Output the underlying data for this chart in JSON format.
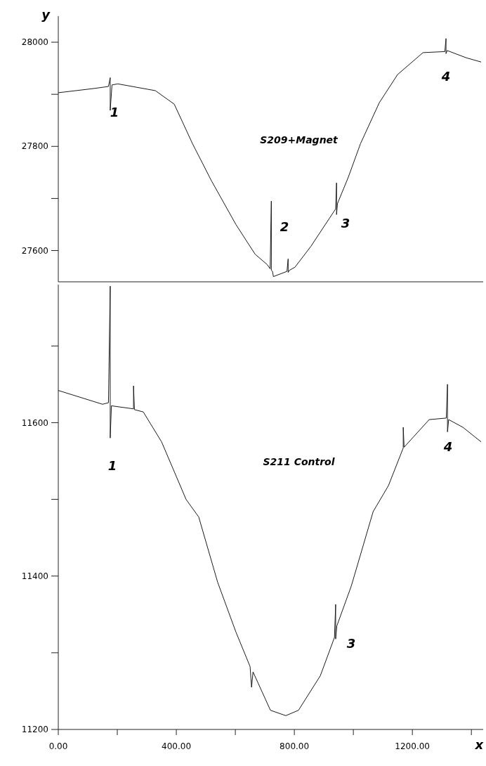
{
  "chart_data": [
    {
      "type": "line",
      "title": "S209+Magnet",
      "ylabel": "y",
      "tick_labels": "y",
      "xlim": [
        0,
        1440
      ],
      "ylim": [
        27540,
        28050
      ],
      "yticks": [
        27600,
        {
          "value": 27700,
          "label": null
        },
        27800,
        {
          "value": 27900,
          "label": null
        },
        28000
      ],
      "x": [
        0,
        119,
        170,
        176,
        176,
        182,
        202,
        329,
        393,
        455,
        519,
        602,
        667,
        708,
        718,
        722,
        722,
        726,
        729,
        775,
        779,
        779,
        783,
        802,
        856,
        919,
        940,
        943,
        943,
        946,
        983,
        1024,
        1088,
        1150,
        1236,
        1310,
        1314,
        1314,
        1318,
        1383,
        1433
      ],
      "series": [
        {
          "color": "#1a1a1a",
          "values": [
            27903,
            27911,
            27915,
            27932,
            27869,
            27918,
            27920,
            27907,
            27881,
            27805,
            27734,
            27650,
            27593,
            27573,
            27565,
            27695,
            27562,
            27560,
            27550,
            27560,
            27584,
            27558,
            27562,
            27568,
            27608,
            27662,
            27680,
            27730,
            27669,
            27690,
            27741,
            27805,
            27884,
            27938,
            27980,
            27982,
            28007,
            27978,
            27984,
            27970,
            27962
          ]
        }
      ],
      "annotations": [
        "1",
        "2",
        "3",
        "4"
      ]
    },
    {
      "type": "line",
      "title": "S211 Control",
      "xlabel": "x",
      "xlim": [
        0,
        1440
      ],
      "ylim": [
        11200,
        11780
      ],
      "xticks": [
        {
          "value": 0,
          "label": "0.00"
        },
        {
          "value": 200,
          "label": null
        },
        {
          "value": 400,
          "label": "400.00"
        },
        {
          "value": 600,
          "label": null
        },
        {
          "value": 800,
          "label": "800.00"
        },
        {
          "value": 1000,
          "label": null
        },
        {
          "value": 1200,
          "label": "1200.00"
        },
        {
          "value": 1400,
          "label": null
        }
      ],
      "yticks": [
        11200,
        {
          "value": 11300,
          "label": null
        },
        11400,
        {
          "value": 11500,
          "label": null
        },
        11600,
        {
          "value": 11700,
          "label": null
        }
      ],
      "x": [
        0,
        150,
        170,
        176,
        176,
        180,
        255,
        255,
        258,
        288,
        350,
        433,
        476,
        540,
        602,
        650,
        655,
        660,
        719,
        771,
        814,
        888,
        936,
        940,
        940,
        944,
        993,
        1067,
        1119,
        1169,
        1169,
        1172,
        1257,
        1315,
        1319,
        1319,
        1323,
        1371,
        1433
      ],
      "series": [
        {
          "color": "#1a1a1a",
          "values": [
            11642,
            11624,
            11626,
            11778,
            11580,
            11622,
            11618,
            11648,
            11617,
            11614,
            11575,
            11500,
            11477,
            11392,
            11327,
            11282,
            11255,
            11275,
            11225,
            11218,
            11225,
            11270,
            11320,
            11363,
            11318,
            11335,
            11387,
            11484,
            11518,
            11567,
            11594,
            11568,
            11604,
            11606,
            11650,
            11588,
            11604,
            11594,
            11575
          ]
        }
      ],
      "annotations": [
        "1",
        "3",
        "4"
      ]
    }
  ]
}
